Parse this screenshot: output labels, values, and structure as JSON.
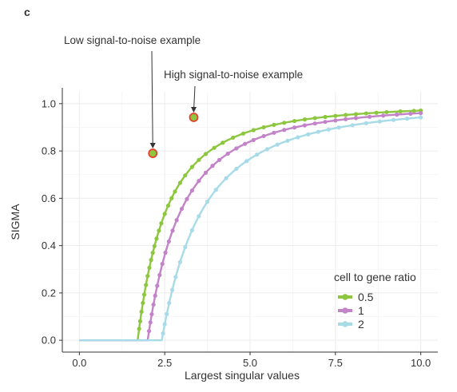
{
  "panel_label": "c",
  "chart_data": {
    "type": "line",
    "title": "",
    "xlabel": "Largest singular values",
    "ylabel": "SIGMA",
    "xlim": [
      -0.5,
      10.5
    ],
    "ylim": [
      -0.05,
      1.05
    ],
    "x_ticks": [
      0.0,
      2.5,
      5.0,
      7.5,
      10.0
    ],
    "x_tick_labels": [
      "0.0",
      "2.5",
      "5.0",
      "7.5",
      "10.0"
    ],
    "y_ticks": [
      0.0,
      0.2,
      0.4,
      0.6,
      0.8,
      1.0
    ],
    "y_tick_labels": [
      "0.0",
      "0.2",
      "0.4",
      "0.6",
      "0.8",
      "1.0"
    ],
    "grid": true,
    "legend": {
      "title": "cell to gene ratio",
      "placement": "bottom-right"
    },
    "series": [
      {
        "name": "0.5",
        "color": "#8dc63f",
        "threshold": 1.707,
        "x_start": 0.0,
        "x_end": 10.0,
        "points": [
          1.75,
          1.78,
          1.82,
          1.86,
          1.9,
          1.95,
          2.0,
          2.05,
          2.1,
          2.15,
          2.2,
          2.26,
          2.33,
          2.4,
          2.5,
          2.6,
          2.7,
          2.8,
          2.95,
          3.1,
          3.3,
          3.5,
          3.7,
          3.95,
          4.2,
          4.5,
          4.8,
          5.1,
          5.4,
          5.7,
          6.0,
          6.3,
          6.6,
          6.9,
          7.2,
          7.5,
          7.8,
          8.1,
          8.4,
          8.7,
          9.0,
          9.4,
          9.8,
          10.0
        ]
      },
      {
        "name": "1",
        "color": "#c383c8",
        "threshold": 2.0,
        "x_start": 0.0,
        "x_end": 10.0,
        "points": [
          2.04,
          2.08,
          2.12,
          2.17,
          2.22,
          2.28,
          2.35,
          2.43,
          2.52,
          2.62,
          2.73,
          2.85,
          3.0,
          3.15,
          3.3,
          3.5,
          3.7,
          3.9,
          4.1,
          4.35,
          4.6,
          4.85,
          5.1,
          5.4,
          5.7,
          6.0,
          6.3,
          6.6,
          6.9,
          7.2,
          7.5,
          7.8,
          8.1,
          8.5,
          8.9,
          9.3,
          9.7,
          10.0
        ]
      },
      {
        "name": "2",
        "color": "#a7dbe8",
        "threshold": 2.414,
        "x_start": 0.0,
        "x_end": 10.0,
        "points": [
          2.45,
          2.5,
          2.56,
          2.63,
          2.72,
          2.82,
          2.95,
          3.1,
          3.3,
          3.5,
          3.75,
          4.0,
          4.3,
          4.6,
          4.9,
          5.2,
          5.5,
          5.8,
          6.1,
          6.4,
          6.7,
          7.0,
          7.3,
          7.6,
          8.0,
          8.4,
          8.8,
          9.2,
          9.6,
          10.0
        ]
      }
    ],
    "annotations": [
      {
        "text": "Low signal-to-noise example",
        "x": 2.15,
        "y": 0.79,
        "series": "0.5"
      },
      {
        "text": "High signal-to-noise example",
        "x": 3.35,
        "y": 0.942,
        "series": "0.5"
      }
    ],
    "highlight_color": "#e8402a"
  }
}
